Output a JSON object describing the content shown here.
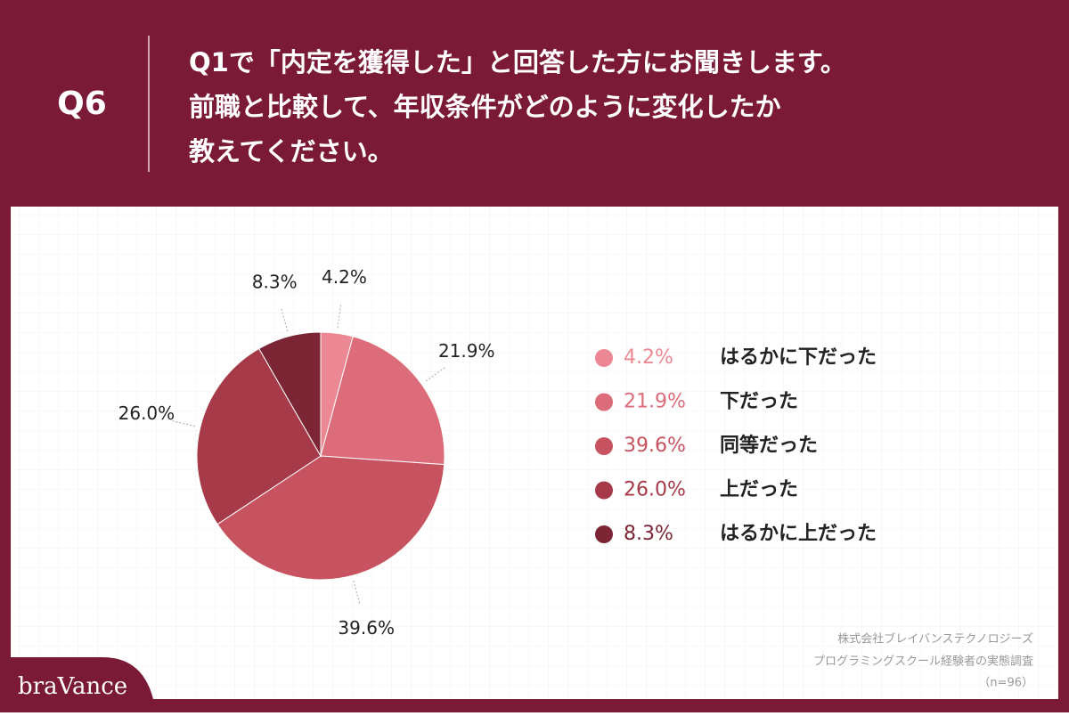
{
  "header": {
    "label": "Q6",
    "question": [
      "Q1で「内定を獲得した」と回答した方にお聞きします。",
      "前職と比較して、年収条件がどのように変化したか",
      "教えてください。"
    ]
  },
  "chart_data": {
    "type": "pie",
    "categories": [
      "はるかに下だった",
      "下だった",
      "同等だった",
      "上だった",
      "はるかに上だった"
    ],
    "values": [
      4.2,
      21.9,
      39.6,
      26.0,
      8.3
    ],
    "value_labels": [
      "4.2%",
      "21.9%",
      "39.6%",
      "26.0%",
      "8.3%"
    ],
    "colors": [
      "#ec8893",
      "#dc6c79",
      "#c6535f",
      "#a63a49",
      "#7b2535"
    ]
  },
  "footer": {
    "source": [
      "株式会社ブレイバンステクノロジーズ",
      "プログラミングスクール経験者の実態調査",
      "（n=96）"
    ],
    "logo": "braVance"
  }
}
